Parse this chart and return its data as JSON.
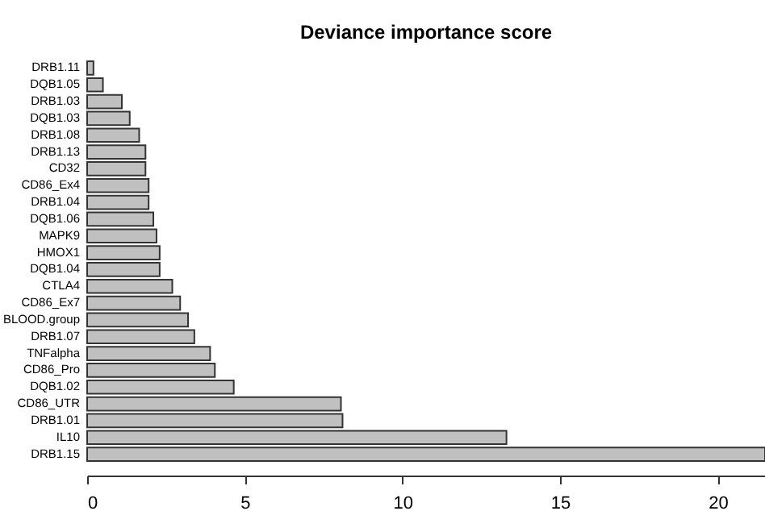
{
  "chart_data": {
    "type": "bar",
    "orientation": "horizontal",
    "title": "Deviance importance score",
    "categories": [
      "DRB1.11",
      "DQB1.05",
      "DRB1.03",
      "DQB1.03",
      "DRB1.08",
      "DRB1.13",
      "CD32",
      "CD86_Ex4",
      "DRB1.04",
      "DQB1.06",
      "MAPK9",
      "HMOX1",
      "DQB1.04",
      "CTLA4",
      "CD86_Ex7",
      "BLOOD.group",
      "DRB1.07",
      "TNFalpha",
      "CD86_Pro",
      "DQB1.02",
      "CD86_UTR",
      "DRB1.01",
      "IL10",
      "DRB1.15"
    ],
    "values": [
      0.2,
      0.5,
      1.1,
      1.35,
      1.65,
      1.85,
      1.85,
      1.95,
      1.95,
      2.1,
      2.2,
      2.3,
      2.3,
      2.7,
      2.95,
      3.2,
      3.4,
      3.9,
      4.05,
      4.65,
      8.05,
      8.1,
      13.3,
      21.5
    ],
    "color": "#c0c0c0",
    "xlim": [
      0,
      21.5
    ],
    "xticks": [
      0,
      5,
      10,
      15,
      20
    ]
  }
}
